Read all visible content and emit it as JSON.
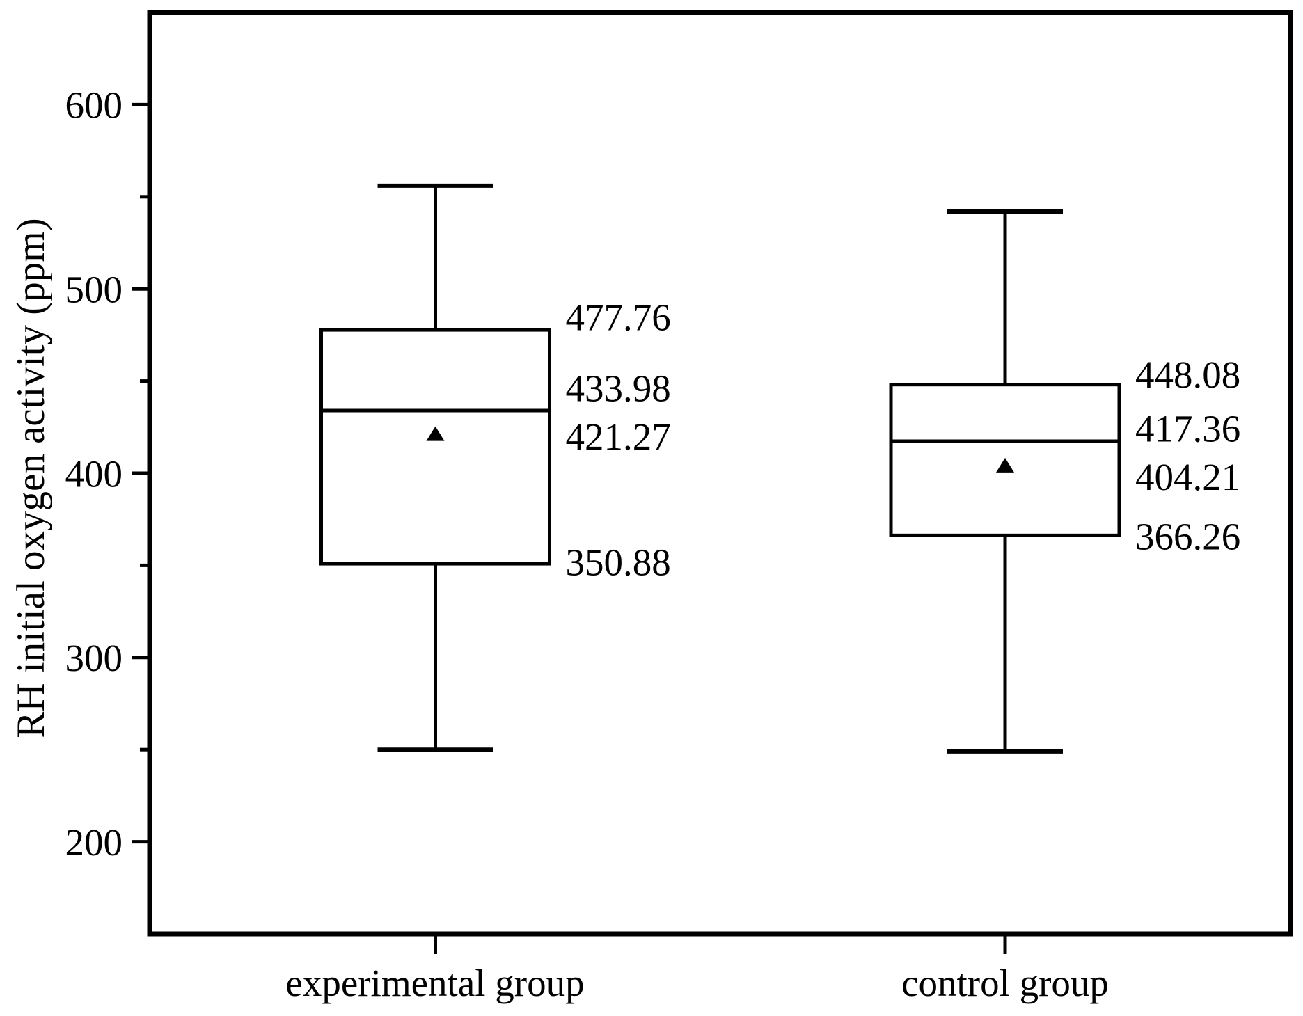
{
  "chart_data": {
    "type": "box",
    "title": "",
    "xlabel": "",
    "ylabel": "RH initial oxygen activity (ppm)",
    "ylim": [
      150,
      650
    ],
    "y_major_ticks": [
      200,
      300,
      400,
      500,
      600
    ],
    "y_minor_ticks": [
      250,
      350,
      450,
      550
    ],
    "grid": "off",
    "legend": "none",
    "categories": [
      "experimental group",
      "control group"
    ],
    "series": [
      {
        "name": "experimental group",
        "whisker_high": 556,
        "q3": 477.76,
        "median": 433.98,
        "mean": 421.27,
        "q1": 350.88,
        "whisker_low": 250,
        "value_labels": [
          "477.76",
          "433.98",
          "421.27",
          "350.88"
        ]
      },
      {
        "name": "control group",
        "whisker_high": 542,
        "q3": 448.08,
        "median": 417.36,
        "mean": 404.21,
        "q1": 366.26,
        "whisker_low": 249,
        "value_labels": [
          "448.08",
          "417.36",
          "404.21",
          "366.26"
        ]
      }
    ],
    "colors": {
      "line": "#000000",
      "box_fill": "#ffffff",
      "background": "#ffffff",
      "mean_marker": "#000000"
    },
    "mean_marker_shape": "filled-triangle-up"
  }
}
